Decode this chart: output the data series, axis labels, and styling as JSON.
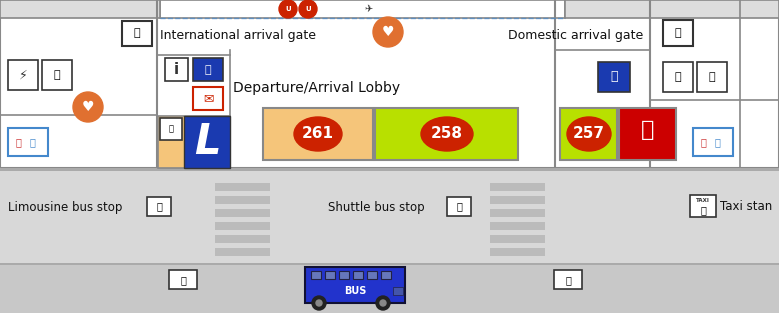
{
  "bg_color": "#f0f0f0",
  "floor_color": "#ffffff",
  "wall_color": "#999999",
  "road_color": "#d8d8d8",
  "road2_color": "#c8c8c8",
  "text_intl": "International arrival gate",
  "text_dom": "Domestic arrival gate",
  "text_lobby": "Departure/Arrival Lobby",
  "text_limo": "Limousine bus stop",
  "text_shuttle": "Shuttle bus stop",
  "text_taxi": "Taxi stan",
  "room261_color": "#f5c57a",
  "room258_color": "#b8e000",
  "room257_color": "#b8e000",
  "smoking_color": "#cc0000",
  "lmarker_color": "#1a3ab0",
  "lmarker_bg": "#f5c57a",
  "bus_color": "#2233cc",
  "orange_icon": "#e07030",
  "red_icon": "#cc2200",
  "gray_line": "#aaaaaa",
  "dark_road": "#c8c8c8",
  "light_road": "#d8d8d8"
}
